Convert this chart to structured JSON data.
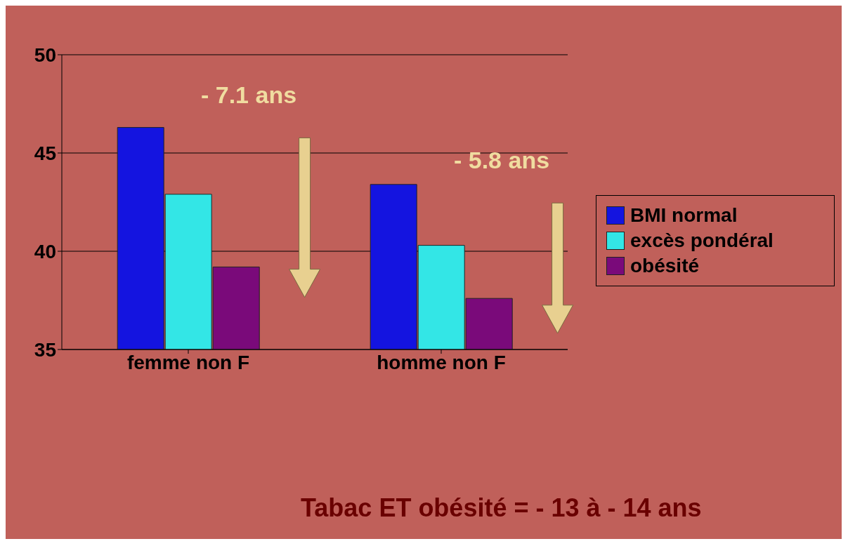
{
  "chart_data": {
    "type": "bar",
    "categories": [
      "femme non F",
      "homme non F"
    ],
    "series": [
      {
        "name": "BMI normal",
        "color": "#1414e0",
        "values": [
          46.3,
          43.4
        ]
      },
      {
        "name": "excès pondéral",
        "color": "#33e6e6",
        "values": [
          42.9,
          40.3
        ]
      },
      {
        "name": "obésité",
        "color": "#7a0a7a",
        "values": [
          39.2,
          37.6
        ]
      }
    ],
    "ylim": [
      35,
      50
    ],
    "yticks": [
      35,
      40,
      45,
      50
    ],
    "grid": "y",
    "legend": "right",
    "annotations": [
      "- 7.1 ans",
      "- 5.8 ans",
      "Tabac ET obésité = - 13 à - 14 ans"
    ]
  }
}
